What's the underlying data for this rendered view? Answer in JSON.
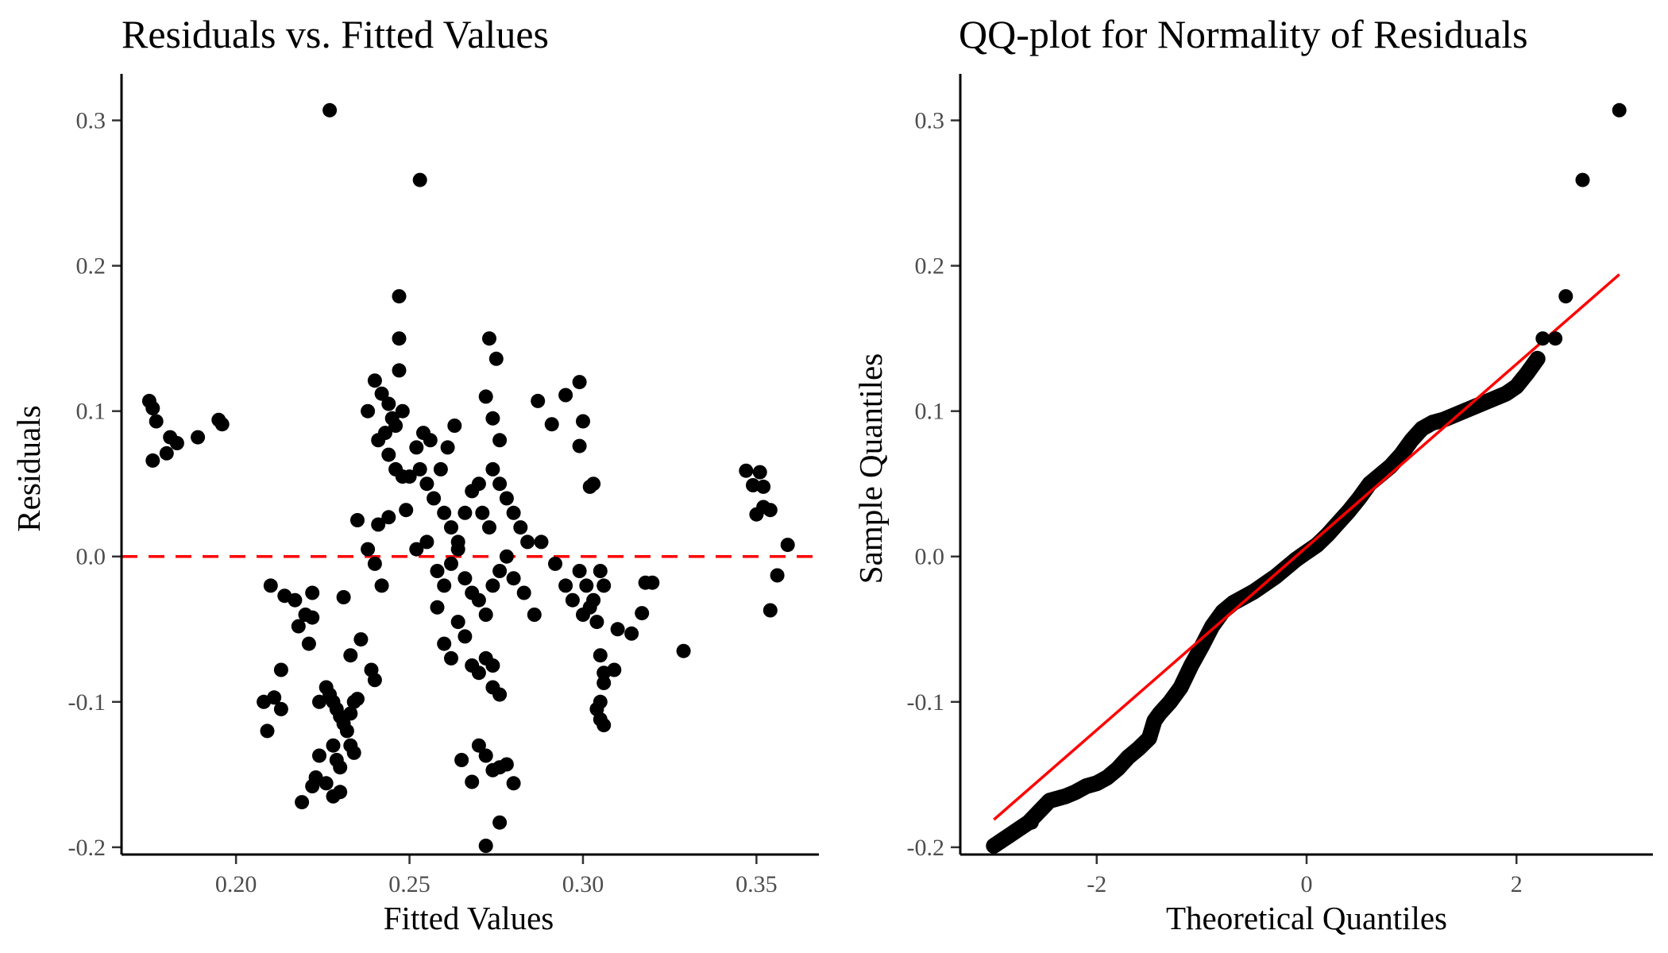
{
  "chart_data": [
    {
      "type": "scatter",
      "title": "Residuals vs. Fitted Values",
      "xlabel": "Fitted Values",
      "ylabel": "Residuals",
      "xlim": [
        0.167,
        0.368
      ],
      "ylim": [
        -0.205,
        0.332
      ],
      "xticks": [
        0.2,
        0.25,
        0.3,
        0.35
      ],
      "xtick_labels": [
        "0.20",
        "0.25",
        "0.30",
        "0.35"
      ],
      "yticks": [
        -0.2,
        -0.1,
        0.0,
        0.1,
        0.2,
        0.3
      ],
      "ytick_labels": [
        "-0.2",
        "-0.1",
        "0.0",
        "0.1",
        "0.2",
        "0.3"
      ],
      "grid": false,
      "point_color": "#000000",
      "reference_line": {
        "y": 0,
        "style": "dashed",
        "color": "#ff0000"
      },
      "points": [
        [
          0.175,
          0.107
        ],
        [
          0.176,
          0.102
        ],
        [
          0.177,
          0.093
        ],
        [
          0.176,
          0.066
        ],
        [
          0.18,
          0.071
        ],
        [
          0.181,
          0.082
        ],
        [
          0.183,
          0.078
        ],
        [
          0.189,
          0.082
        ],
        [
          0.195,
          0.094
        ],
        [
          0.196,
          0.091
        ],
        [
          0.227,
          0.307
        ],
        [
          0.253,
          0.259
        ],
        [
          0.247,
          0.179
        ],
        [
          0.247,
          0.15
        ],
        [
          0.247,
          0.128
        ],
        [
          0.238,
          0.1
        ],
        [
          0.24,
          0.121
        ],
        [
          0.242,
          0.112
        ],
        [
          0.244,
          0.105
        ],
        [
          0.245,
          0.095
        ],
        [
          0.243,
          0.085
        ],
        [
          0.241,
          0.08
        ],
        [
          0.246,
          0.09
        ],
        [
          0.248,
          0.1
        ],
        [
          0.244,
          0.07
        ],
        [
          0.246,
          0.06
        ],
        [
          0.248,
          0.055
        ],
        [
          0.25,
          0.055
        ],
        [
          0.252,
          0.075
        ],
        [
          0.254,
          0.085
        ],
        [
          0.256,
          0.08
        ],
        [
          0.253,
          0.06
        ],
        [
          0.255,
          0.05
        ],
        [
          0.257,
          0.04
        ],
        [
          0.259,
          0.06
        ],
        [
          0.261,
          0.075
        ],
        [
          0.263,
          0.09
        ],
        [
          0.26,
          0.03
        ],
        [
          0.262,
          0.02
        ],
        [
          0.264,
          0.01
        ],
        [
          0.266,
          0.03
        ],
        [
          0.268,
          0.045
        ],
        [
          0.27,
          0.05
        ],
        [
          0.271,
          0.03
        ],
        [
          0.273,
          0.02
        ],
        [
          0.274,
          0.06
        ],
        [
          0.276,
          0.05
        ],
        [
          0.278,
          0.04
        ],
        [
          0.28,
          0.03
        ],
        [
          0.282,
          0.02
        ],
        [
          0.284,
          0.01
        ],
        [
          0.272,
          0.11
        ],
        [
          0.274,
          0.095
        ],
        [
          0.276,
          0.08
        ],
        [
          0.275,
          0.136
        ],
        [
          0.273,
          0.15
        ],
        [
          0.287,
          0.107
        ],
        [
          0.291,
          0.091
        ],
        [
          0.295,
          0.111
        ],
        [
          0.299,
          0.12
        ],
        [
          0.3,
          0.093
        ],
        [
          0.299,
          0.076
        ],
        [
          0.302,
          0.048
        ],
        [
          0.303,
          0.05
        ],
        [
          0.235,
          0.025
        ],
        [
          0.238,
          0.005
        ],
        [
          0.24,
          -0.005
        ],
        [
          0.241,
          0.022
        ],
        [
          0.242,
          -0.02
        ],
        [
          0.244,
          0.027
        ],
        [
          0.249,
          0.032
        ],
        [
          0.252,
          0.005
        ],
        [
          0.255,
          0.01
        ],
        [
          0.258,
          -0.01
        ],
        [
          0.26,
          -0.02
        ],
        [
          0.262,
          -0.005
        ],
        [
          0.264,
          0.005
        ],
        [
          0.266,
          -0.015
        ],
        [
          0.268,
          -0.025
        ],
        [
          0.27,
          -0.03
        ],
        [
          0.272,
          -0.04
        ],
        [
          0.274,
          -0.02
        ],
        [
          0.276,
          -0.01
        ],
        [
          0.278,
          0.0
        ],
        [
          0.28,
          -0.015
        ],
        [
          0.283,
          -0.025
        ],
        [
          0.286,
          -0.04
        ],
        [
          0.288,
          0.01
        ],
        [
          0.292,
          -0.005
        ],
        [
          0.295,
          -0.02
        ],
        [
          0.297,
          -0.03
        ],
        [
          0.299,
          -0.01
        ],
        [
          0.301,
          -0.02
        ],
        [
          0.303,
          -0.03
        ],
        [
          0.305,
          -0.01
        ],
        [
          0.306,
          -0.02
        ],
        [
          0.304,
          -0.045
        ],
        [
          0.302,
          -0.035
        ],
        [
          0.3,
          -0.04
        ],
        [
          0.258,
          -0.035
        ],
        [
          0.26,
          -0.06
        ],
        [
          0.262,
          -0.07
        ],
        [
          0.264,
          -0.045
        ],
        [
          0.266,
          -0.055
        ],
        [
          0.268,
          -0.075
        ],
        [
          0.27,
          -0.08
        ],
        [
          0.272,
          -0.07
        ],
        [
          0.274,
          -0.09
        ],
        [
          0.276,
          -0.095
        ],
        [
          0.274,
          -0.075
        ],
        [
          0.305,
          -0.068
        ],
        [
          0.306,
          -0.08
        ],
        [
          0.306,
          -0.087
        ],
        [
          0.305,
          -0.1
        ],
        [
          0.304,
          -0.105
        ],
        [
          0.305,
          -0.112
        ],
        [
          0.306,
          -0.116
        ],
        [
          0.309,
          -0.078
        ],
        [
          0.31,
          -0.05
        ],
        [
          0.314,
          -0.053
        ],
        [
          0.318,
          -0.018
        ],
        [
          0.32,
          -0.018
        ],
        [
          0.317,
          -0.039
        ],
        [
          0.329,
          -0.065
        ],
        [
          0.21,
          -0.02
        ],
        [
          0.214,
          -0.027
        ],
        [
          0.217,
          -0.03
        ],
        [
          0.218,
          -0.048
        ],
        [
          0.22,
          -0.04
        ],
        [
          0.221,
          -0.06
        ],
        [
          0.222,
          -0.025
        ],
        [
          0.222,
          -0.042
        ],
        [
          0.213,
          -0.078
        ],
        [
          0.208,
          -0.1
        ],
        [
          0.209,
          -0.12
        ],
        [
          0.211,
          -0.097
        ],
        [
          0.213,
          -0.105
        ],
        [
          0.224,
          -0.1
        ],
        [
          0.226,
          -0.09
        ],
        [
          0.227,
          -0.095
        ],
        [
          0.228,
          -0.1
        ],
        [
          0.229,
          -0.105
        ],
        [
          0.23,
          -0.11
        ],
        [
          0.231,
          -0.115
        ],
        [
          0.232,
          -0.12
        ],
        [
          0.233,
          -0.108
        ],
        [
          0.234,
          -0.1
        ],
        [
          0.235,
          -0.098
        ],
        [
          0.228,
          -0.13
        ],
        [
          0.229,
          -0.14
        ],
        [
          0.23,
          -0.145
        ],
        [
          0.233,
          -0.13
        ],
        [
          0.234,
          -0.135
        ],
        [
          0.224,
          -0.137
        ],
        [
          0.223,
          -0.152
        ],
        [
          0.222,
          -0.158
        ],
        [
          0.219,
          -0.169
        ],
        [
          0.228,
          -0.165
        ],
        [
          0.23,
          -0.162
        ],
        [
          0.226,
          -0.156
        ],
        [
          0.231,
          -0.028
        ],
        [
          0.233,
          -0.068
        ],
        [
          0.236,
          -0.057
        ],
        [
          0.239,
          -0.078
        ],
        [
          0.24,
          -0.085
        ],
        [
          0.265,
          -0.14
        ],
        [
          0.268,
          -0.155
        ],
        [
          0.27,
          -0.13
        ],
        [
          0.272,
          -0.137
        ],
        [
          0.274,
          -0.147
        ],
        [
          0.276,
          -0.145
        ],
        [
          0.278,
          -0.143
        ],
        [
          0.28,
          -0.156
        ],
        [
          0.276,
          -0.183
        ],
        [
          0.272,
          -0.199
        ],
        [
          0.347,
          0.059
        ],
        [
          0.349,
          0.049
        ],
        [
          0.351,
          0.058
        ],
        [
          0.352,
          0.048
        ],
        [
          0.35,
          0.029
        ],
        [
          0.352,
          0.034
        ],
        [
          0.354,
          0.032
        ],
        [
          0.359,
          0.008
        ],
        [
          0.356,
          -0.013
        ],
        [
          0.354,
          -0.037
        ]
      ]
    },
    {
      "type": "scatter",
      "title": "QQ-plot for Normality of Residuals",
      "xlabel": "Theoretical Quantiles",
      "ylabel": "Sample Quantiles",
      "xlim": [
        -3.3,
        3.3
      ],
      "ylim": [
        -0.205,
        0.332
      ],
      "xticks": [
        -2,
        0,
        2
      ],
      "xtick_labels": [
        "-2",
        "0",
        "2"
      ],
      "yticks": [
        -0.2,
        -0.1,
        0.0,
        0.1,
        0.2,
        0.3
      ],
      "ytick_labels": [
        "-0.2",
        "-0.1",
        "0.0",
        "0.1",
        "0.2",
        "0.3"
      ],
      "grid": false,
      "point_color": "#000000",
      "fit_line": {
        "x": [
          -2.98,
          2.98
        ],
        "y": [
          -0.181,
          0.194
        ],
        "color": "#ff0000"
      },
      "qq_curve": [
        [
          -2.98,
          -0.199
        ],
        [
          -2.65,
          -0.183
        ],
        [
          -2.45,
          -0.168
        ],
        [
          -2.3,
          -0.165
        ],
        [
          -2.2,
          -0.162
        ],
        [
          -2.1,
          -0.158
        ],
        [
          -2.0,
          -0.156
        ],
        [
          -1.9,
          -0.152
        ],
        [
          -1.8,
          -0.146
        ],
        [
          -1.7,
          -0.138
        ],
        [
          -1.6,
          -0.132
        ],
        [
          -1.5,
          -0.125
        ],
        [
          -1.45,
          -0.113
        ],
        [
          -1.4,
          -0.108
        ],
        [
          -1.3,
          -0.1
        ],
        [
          -1.2,
          -0.09
        ],
        [
          -1.1,
          -0.075
        ],
        [
          -1.0,
          -0.062
        ],
        [
          -0.9,
          -0.048
        ],
        [
          -0.8,
          -0.038
        ],
        [
          -0.7,
          -0.032
        ],
        [
          -0.6,
          -0.028
        ],
        [
          -0.5,
          -0.024
        ],
        [
          -0.4,
          -0.019
        ],
        [
          -0.3,
          -0.014
        ],
        [
          -0.2,
          -0.008
        ],
        [
          -0.1,
          -0.002
        ],
        [
          0.0,
          0.003
        ],
        [
          0.1,
          0.008
        ],
        [
          0.2,
          0.015
        ],
        [
          0.3,
          0.023
        ],
        [
          0.4,
          0.031
        ],
        [
          0.5,
          0.04
        ],
        [
          0.6,
          0.05
        ],
        [
          0.7,
          0.056
        ],
        [
          0.8,
          0.062
        ],
        [
          0.9,
          0.07
        ],
        [
          1.0,
          0.08
        ],
        [
          1.1,
          0.088
        ],
        [
          1.2,
          0.092
        ],
        [
          1.3,
          0.094
        ],
        [
          1.4,
          0.097
        ],
        [
          1.5,
          0.1
        ],
        [
          1.6,
          0.103
        ],
        [
          1.7,
          0.106
        ],
        [
          1.8,
          0.109
        ],
        [
          1.9,
          0.112
        ],
        [
          2.0,
          0.117
        ],
        [
          2.1,
          0.126
        ],
        [
          2.2,
          0.136
        ]
      ],
      "points": [
        [
          -2.98,
          -0.199
        ],
        [
          -2.62,
          -0.183
        ],
        [
          -2.45,
          -0.168
        ],
        [
          2.25,
          0.15
        ],
        [
          2.37,
          0.15
        ],
        [
          2.47,
          0.179
        ],
        [
          2.63,
          0.259
        ],
        [
          2.98,
          0.307
        ]
      ]
    }
  ]
}
